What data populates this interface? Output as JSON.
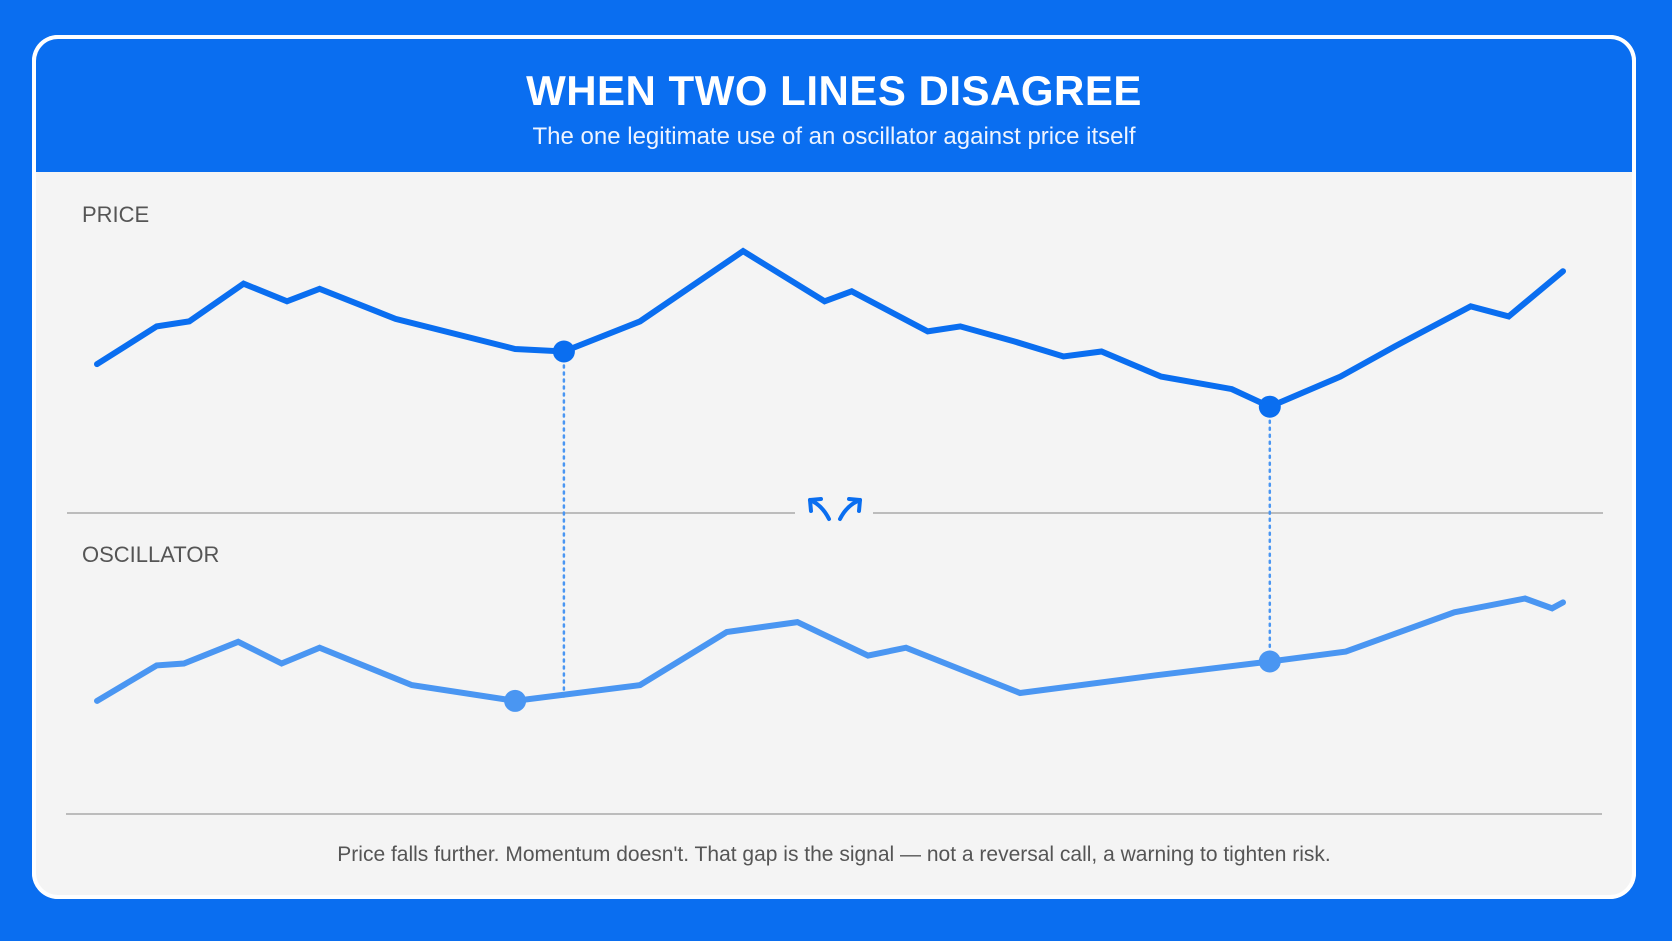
{
  "header": {
    "title": "WHEN TWO LINES DISAGREE",
    "subtitle": "The one legitimate use of an oscillator against price itself"
  },
  "footnote": "Price falls further. Momentum doesn't. That gap is the signal — not a reversal call, a warning to tighten risk.",
  "colors": {
    "background": "#0a6ef0",
    "price_line": "#0a6ef0",
    "oscillator_line": "#4a96f2",
    "card": "#f4f4f4",
    "divider": "#9a9a9a"
  },
  "icons": {
    "divergence": "diverging-arrows-icon"
  },
  "chart_data": {
    "type": "line",
    "x": [
      0,
      1,
      2,
      3,
      4,
      5,
      6,
      7,
      8,
      9,
      10,
      11,
      12,
      13,
      14,
      15,
      16,
      17,
      18,
      19,
      20,
      21,
      22,
      23,
      24,
      25
    ],
    "panels": [
      {
        "label": "PRICE",
        "ylim": [
          0,
          100
        ],
        "series": [
          {
            "values": [
              45,
              60,
              62,
              77,
              70,
              75,
              63,
              51,
              50,
              62,
              90,
              70,
              74,
              58,
              60,
              54,
              48,
              50,
              40,
              35,
              28,
              40,
              52,
              68,
              64,
              82
            ],
            "x": [
              0,
              1.1,
              1.7,
              2.7,
              3.5,
              4.1,
              5.5,
              7.7,
              8.6,
              10.0,
              11.9,
              13.4,
              13.9,
              15.3,
              15.9,
              16.9,
              17.8,
              18.5,
              19.6,
              20.9,
              21.6,
              22.9,
              23.9,
              25.3,
              26.0,
              27.0
            ],
            "markers": [
              8.6,
              21.6
            ]
          }
        ]
      },
      {
        "label": "OSCILLATOR",
        "ylim": [
          0,
          100
        ],
        "series": [
          {
            "values": [
              30,
              48,
              49,
              60,
              49,
              57,
              38,
              30,
              38,
              65,
              70,
              53,
              57,
              34,
              43,
              50,
              55,
              75,
              82,
              77,
              80
            ],
            "x": [
              0,
              1.1,
              1.6,
              2.6,
              3.4,
              4.1,
              5.8,
              7.7,
              10.0,
              11.6,
              12.9,
              14.2,
              14.9,
              17.0,
              19.5,
              21.6,
              23.0,
              25.0,
              26.3,
              26.8,
              27.0
            ],
            "markers": [
              7.7,
              21.6
            ]
          }
        ]
      }
    ]
  }
}
